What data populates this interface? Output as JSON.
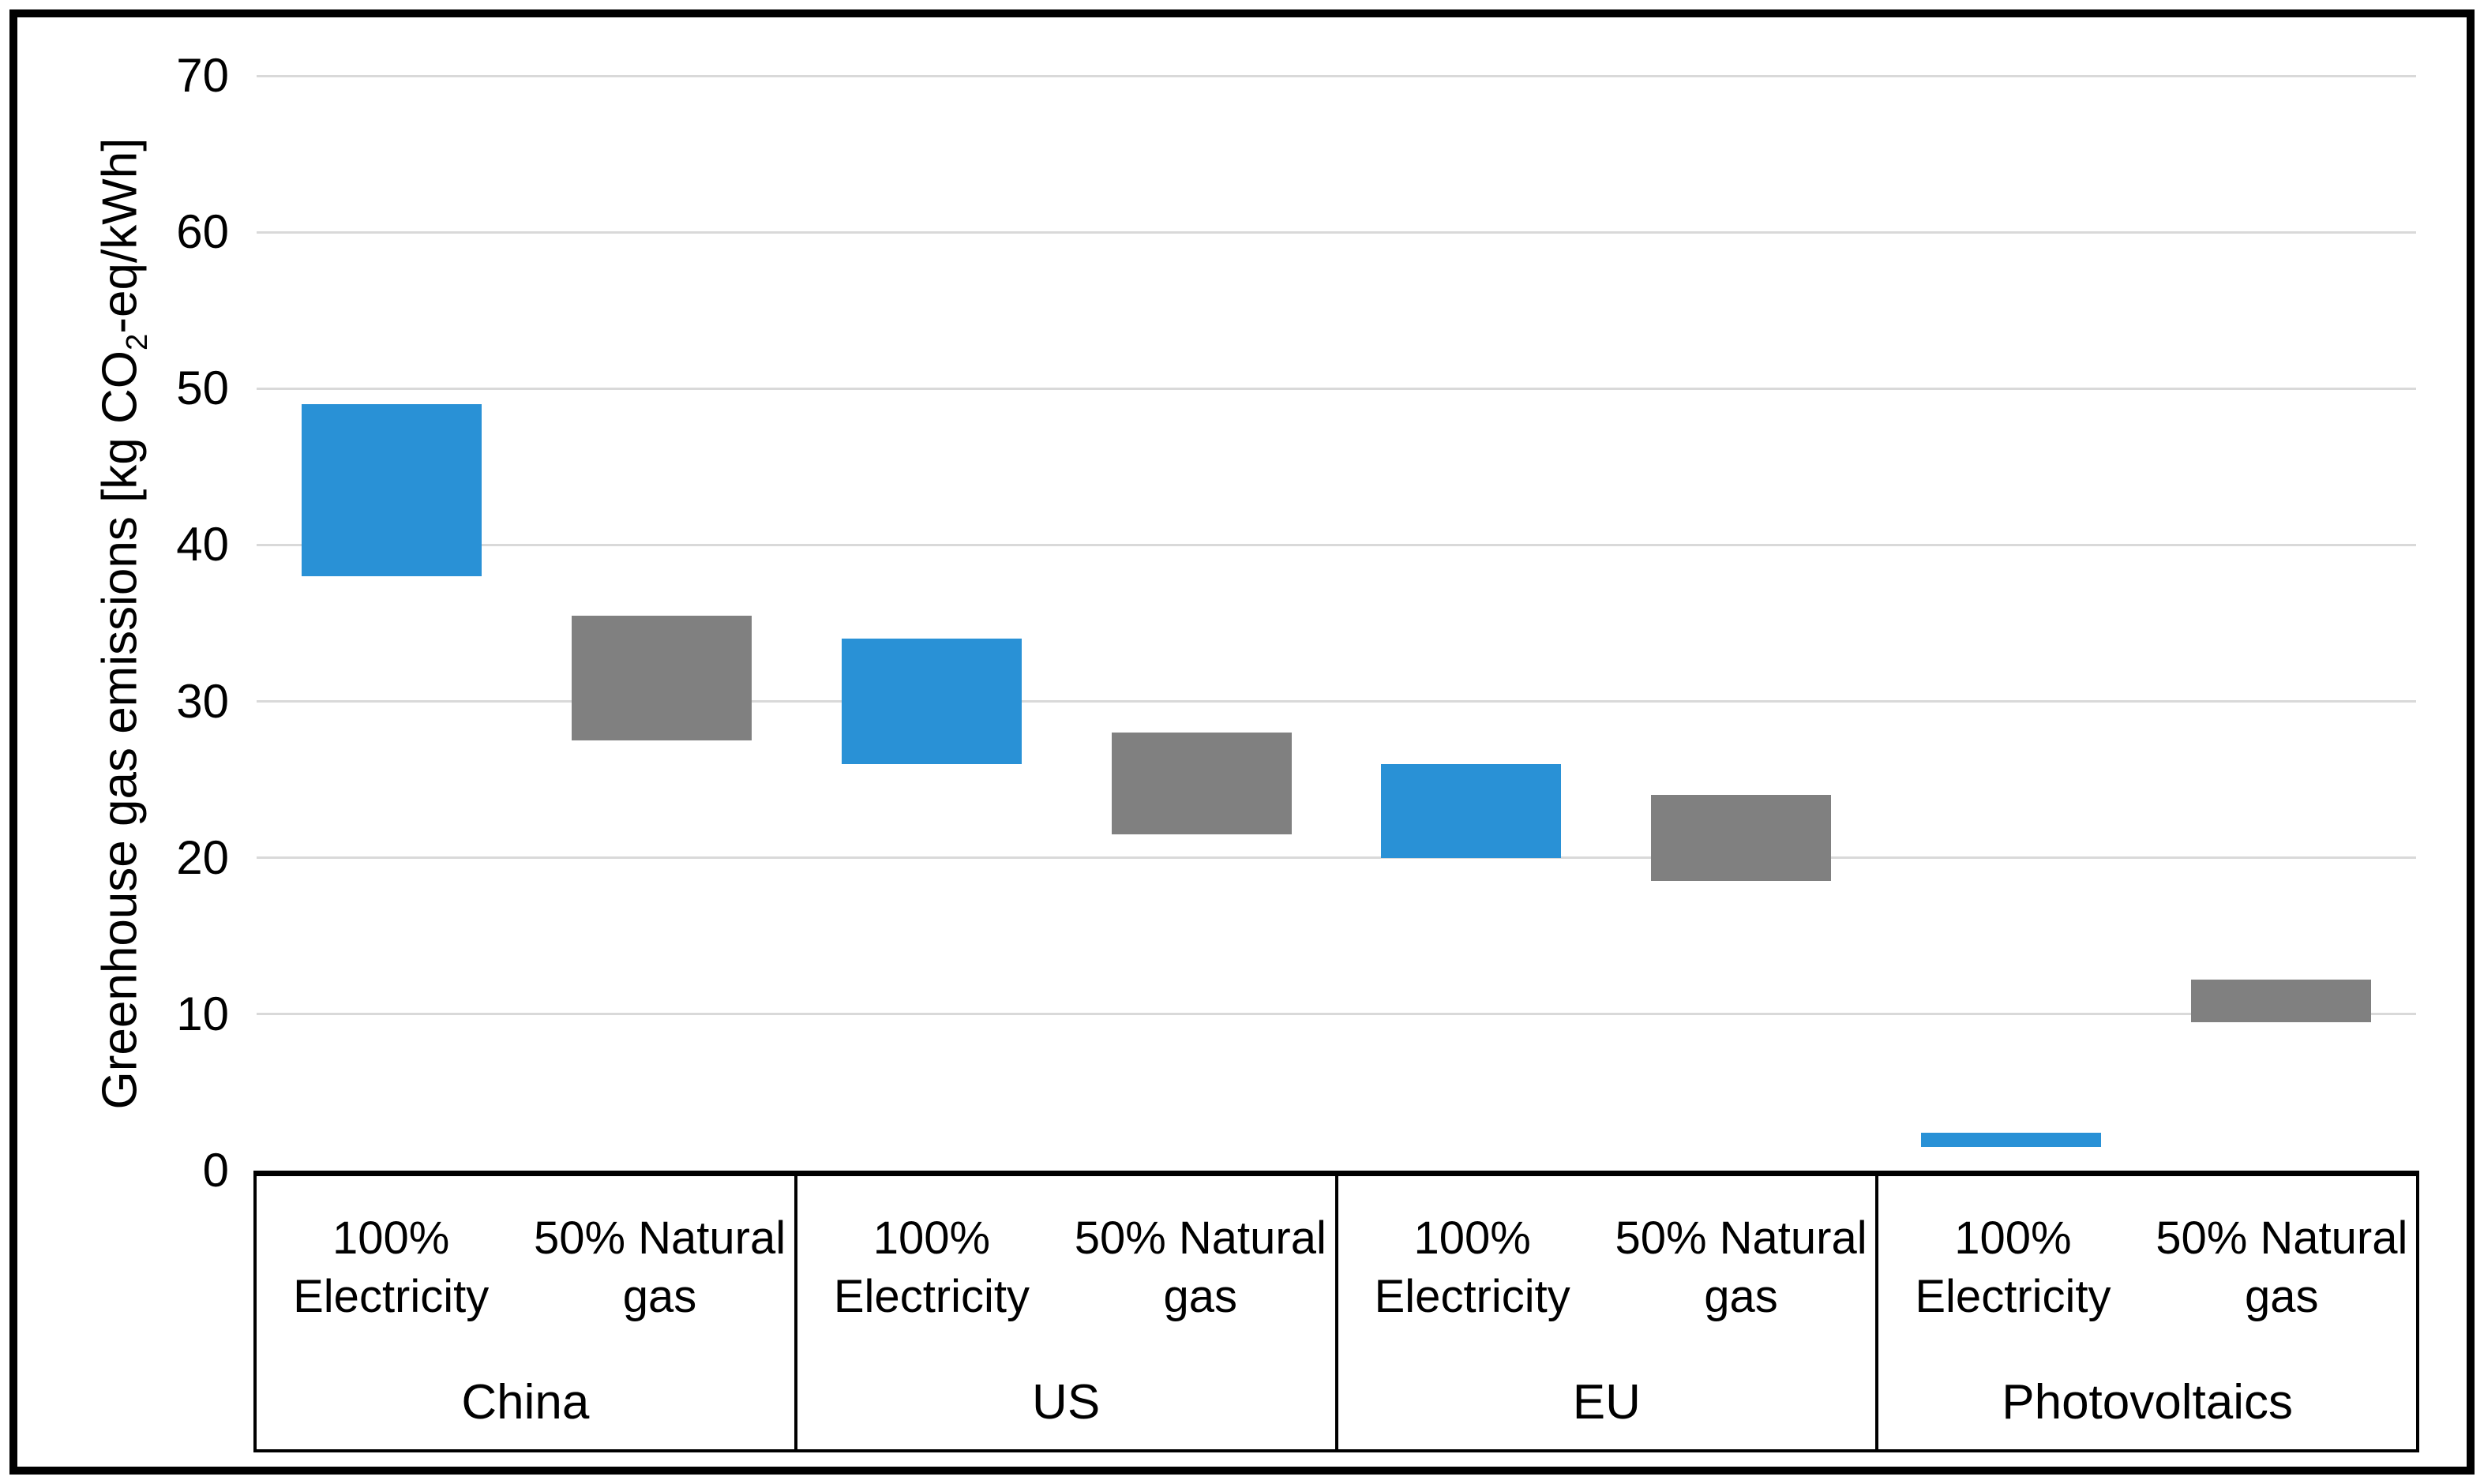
{
  "figure": {
    "background_color": "#FFFFFF",
    "border_color": "#000000",
    "text_color": "#000000"
  },
  "chart_data": {
    "type": "bar",
    "subtype": "floating-range-columns",
    "title": "",
    "ylabel": "Greenhouse gas emissions [kg CO2-eq/kWh]",
    "ylabel_parts": {
      "prefix": "Greenhouse gas emissions [kg CO",
      "sub": "2",
      "suffix": "-eq/kWh]"
    },
    "units": "kg CO2-eq/kWh",
    "ylim": [
      0,
      70
    ],
    "yticks": [
      0,
      10,
      20,
      30,
      40,
      50,
      60,
      70
    ],
    "grid": "horizontal light-gray lines, gridline color #D9D9D9",
    "legend": "none",
    "gridline_color": "#D9D9D9",
    "series": [
      {
        "name": "100% Electricity",
        "label_lines": [
          "100%",
          "Electricity"
        ],
        "color": "#2991D6"
      },
      {
        "name": "50% Natural gas",
        "label_lines": [
          "50% Natural",
          "gas"
        ],
        "color": "#808080"
      }
    ],
    "groups": [
      {
        "label": "China",
        "bars": [
          {
            "series": "100% Electricity",
            "range": [
              38,
              49
            ]
          },
          {
            "series": "50% Natural gas",
            "range": [
              27.5,
              35.5
            ]
          }
        ]
      },
      {
        "label": "US",
        "bars": [
          {
            "series": "100% Electricity",
            "range": [
              26,
              34
            ]
          },
          {
            "series": "50% Natural gas",
            "range": [
              21.5,
              28
            ]
          }
        ]
      },
      {
        "label": "EU",
        "bars": [
          {
            "series": "100% Electricity",
            "range": [
              20,
              26
            ]
          },
          {
            "series": "50% Natural gas",
            "range": [
              18.5,
              24
            ]
          }
        ]
      },
      {
        "label": "Photovoltaics",
        "bars": [
          {
            "series": "100% Electricity",
            "range": [
              1.5,
              2.4
            ]
          },
          {
            "series": "50% Natural gas",
            "range": [
              9.5,
              12.2
            ]
          }
        ]
      }
    ]
  }
}
